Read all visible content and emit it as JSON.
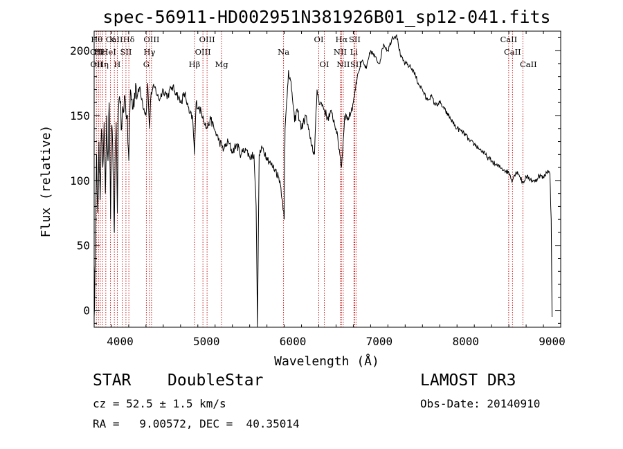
{
  "chart_data": {
    "type": "line",
    "title": "spec-56911-HD002951N381926B01_sp12-041.fits",
    "xlabel": "Wavelength (Å)",
    "ylabel": "Flux (relative)",
    "xlim": [
      3700,
      9100
    ],
    "ylim": [
      -13,
      215
    ],
    "xticks": [
      4000,
      5000,
      6000,
      7000,
      8000,
      9000
    ],
    "yticks": [
      0,
      50,
      100,
      150,
      200
    ],
    "grid": false,
    "line_color": "#000000",
    "marker_color": "#c00000",
    "series": [
      {
        "points": [
          [
            3700,
            -5
          ],
          [
            3715,
            40
          ],
          [
            3728,
            120
          ],
          [
            3742,
            75
          ],
          [
            3755,
            130
          ],
          [
            3770,
            85
          ],
          [
            3785,
            140
          ],
          [
            3800,
            110
          ],
          [
            3815,
            145
          ],
          [
            3830,
            90
          ],
          [
            3845,
            150
          ],
          [
            3860,
            115
          ],
          [
            3875,
            160
          ],
          [
            3890,
            70
          ],
          [
            3900,
            140
          ],
          [
            3915,
            125
          ],
          [
            3933,
            60
          ],
          [
            3945,
            130
          ],
          [
            3955,
            145
          ],
          [
            3968,
            75
          ],
          [
            3980,
            150
          ],
          [
            4000,
            160
          ],
          [
            4020,
            140
          ],
          [
            4050,
            165
          ],
          [
            4080,
            150
          ],
          [
            4101,
            115
          ],
          [
            4120,
            170
          ],
          [
            4150,
            155
          ],
          [
            4180,
            175
          ],
          [
            4200,
            165
          ],
          [
            4230,
            172
          ],
          [
            4260,
            160
          ],
          [
            4300,
            150
          ],
          [
            4320,
            175
          ],
          [
            4340,
            140
          ],
          [
            4360,
            168
          ],
          [
            4400,
            172
          ],
          [
            4450,
            162
          ],
          [
            4500,
            170
          ],
          [
            4550,
            165
          ],
          [
            4600,
            172
          ],
          [
            4650,
            168
          ],
          [
            4700,
            160
          ],
          [
            4750,
            167
          ],
          [
            4800,
            152
          ],
          [
            4840,
            148
          ],
          [
            4861,
            120
          ],
          [
            4880,
            160
          ],
          [
            4920,
            155
          ],
          [
            4960,
            150
          ],
          [
            5000,
            140
          ],
          [
            5050,
            147
          ],
          [
            5100,
            138
          ],
          [
            5150,
            130
          ],
          [
            5200,
            124
          ],
          [
            5250,
            130
          ],
          [
            5300,
            122
          ],
          [
            5350,
            128
          ],
          [
            5400,
            120
          ],
          [
            5450,
            125
          ],
          [
            5500,
            118
          ],
          [
            5550,
            120
          ],
          [
            5575,
            80
          ],
          [
            5590,
            -13
          ],
          [
            5610,
            120
          ],
          [
            5650,
            125
          ],
          [
            5700,
            118
          ],
          [
            5750,
            112
          ],
          [
            5800,
            108
          ],
          [
            5850,
            100
          ],
          [
            5880,
            85
          ],
          [
            5900,
            70
          ],
          [
            5910,
            140
          ],
          [
            5950,
            185
          ],
          [
            5990,
            168
          ],
          [
            6020,
            145
          ],
          [
            6050,
            155
          ],
          [
            6100,
            140
          ],
          [
            6150,
            150
          ],
          [
            6200,
            132
          ],
          [
            6250,
            120
          ],
          [
            6280,
            170
          ],
          [
            6300,
            162
          ],
          [
            6350,
            157
          ],
          [
            6400,
            148
          ],
          [
            6450,
            152
          ],
          [
            6500,
            140
          ],
          [
            6550,
            118
          ],
          [
            6563,
            110
          ],
          [
            6600,
            150
          ],
          [
            6650,
            148
          ],
          [
            6700,
            160
          ],
          [
            6750,
            182
          ],
          [
            6800,
            192
          ],
          [
            6850,
            186
          ],
          [
            6900,
            200
          ],
          [
            6950,
            195
          ],
          [
            7000,
            190
          ],
          [
            7050,
            205
          ],
          [
            7100,
            200
          ],
          [
            7150,
            210
          ],
          [
            7200,
            212
          ],
          [
            7250,
            195
          ],
          [
            7300,
            190
          ],
          [
            7350,
            188
          ],
          [
            7400,
            184
          ],
          [
            7450,
            175
          ],
          [
            7500,
            170
          ],
          [
            7550,
            162
          ],
          [
            7600,
            165
          ],
          [
            7650,
            158
          ],
          [
            7700,
            160
          ],
          [
            7750,
            155
          ],
          [
            7800,
            150
          ],
          [
            7850,
            145
          ],
          [
            7900,
            140
          ],
          [
            7950,
            138
          ],
          [
            8000,
            135
          ],
          [
            8050,
            130
          ],
          [
            8100,
            128
          ],
          [
            8150,
            125
          ],
          [
            8200,
            122
          ],
          [
            8250,
            118
          ],
          [
            8300,
            115
          ],
          [
            8350,
            112
          ],
          [
            8400,
            110
          ],
          [
            8450,
            108
          ],
          [
            8500,
            106
          ],
          [
            8542,
            100
          ],
          [
            8560,
            104
          ],
          [
            8600,
            107
          ],
          [
            8662,
            98
          ],
          [
            8700,
            103
          ],
          [
            8750,
            101
          ],
          [
            8800,
            99
          ],
          [
            8850,
            104
          ],
          [
            8900,
            102
          ],
          [
            8950,
            108
          ],
          [
            8975,
            105
          ],
          [
            8990,
            70
          ],
          [
            9000,
            -5
          ]
        ]
      }
    ],
    "lines": [
      {
        "name": "CaII",
        "wl": 3933.7,
        "row": 1
      },
      {
        "name": "CaII",
        "wl": 8498,
        "row": 1
      },
      {
        "name": "CaII",
        "wl": 8542,
        "row": 2
      },
      {
        "name": "CaII",
        "wl": 8662,
        "row": 3
      }
    ],
    "markers": [
      3726,
      3750,
      3771,
      3798,
      3835,
      3889,
      3933.7,
      3968.5,
      4026,
      4068,
      4101.7,
      4304,
      4340.5,
      4364,
      4861.3,
      4959,
      5007,
      5175,
      5892,
      6300,
      6364,
      6548,
      6563,
      6583,
      6707,
      6716,
      6731,
      8498,
      8542,
      8662
    ],
    "labels": [
      {
        "text": "Hθ",
        "wl": 3730,
        "row": 1
      },
      {
        "text": "Hε",
        "wl": 3765,
        "row": 2
      },
      {
        "text": "Hη",
        "wl": 3800,
        "row": 3
      },
      {
        "text": "K",
        "wl": 3910,
        "row": 1
      },
      {
        "text": "HeI",
        "wl": 3870,
        "row": 2
      },
      {
        "text": "H",
        "wl": 3968,
        "row": 3
      },
      {
        "text": "Hδ",
        "wl": 4101,
        "row": 1
      },
      {
        "text": "SII",
        "wl": 4068,
        "row": 2
      },
      {
        "text": "OIII",
        "wl": 4364,
        "row": 1
      },
      {
        "text": "Hγ",
        "wl": 4340,
        "row": 2
      },
      {
        "text": "G",
        "wl": 4304,
        "row": 3
      },
      {
        "text": "OIII",
        "wl": 5007,
        "row": 1
      },
      {
        "text": "OIII",
        "wl": 4959,
        "row": 2
      },
      {
        "text": "Hβ",
        "wl": 4861,
        "row": 3
      },
      {
        "text": "Mg",
        "wl": 5175,
        "row": 3
      },
      {
        "text": "Na",
        "wl": 5892,
        "row": 2
      },
      {
        "text": "OI",
        "wl": 6300,
        "row": 1
      },
      {
        "text": "OI",
        "wl": 6364,
        "row": 3
      },
      {
        "text": "Hα",
        "wl": 6563,
        "row": 1
      },
      {
        "text": "SII",
        "wl": 6716,
        "row": 1
      },
      {
        "text": "NII",
        "wl": 6548,
        "row": 2
      },
      {
        "text": "Li",
        "wl": 6707,
        "row": 2
      },
      {
        "text": "NII",
        "wl": 6583,
        "row": 3
      },
      {
        "text": "SII",
        "wl": 6731,
        "row": 3
      },
      {
        "text": "OII",
        "wl": 3726,
        "row": 2
      },
      {
        "text": "OII",
        "wl": 3729,
        "row": 3
      }
    ]
  },
  "info": {
    "object_class": "STAR",
    "subclass": "DoubleStar",
    "survey": "LAMOST DR3",
    "cz": "cz = 52.5 ± 1.5 km/s",
    "obs_date": "Obs-Date: 20140910",
    "coords": "RA =   9.00572, DEC =  40.35014"
  }
}
